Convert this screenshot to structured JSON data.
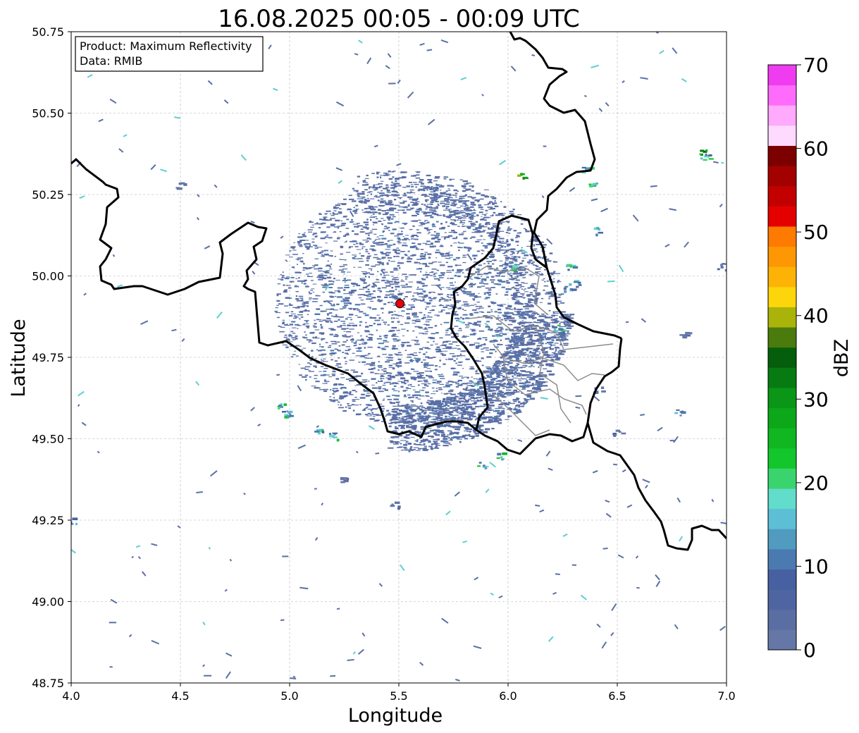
{
  "title": "16.08.2025 00:05 - 00:09 UTC",
  "info_box": {
    "product": "Product: Maximum Reflectivity",
    "data": "Data: RMIB"
  },
  "axes": {
    "xlabel": "Longitude",
    "ylabel": "Latitude",
    "xlim": [
      4.0,
      7.0
    ],
    "ylim": [
      48.75,
      50.75
    ],
    "xticks": [
      4.0,
      4.5,
      5.0,
      5.5,
      6.0,
      6.5,
      7.0
    ],
    "yticks": [
      48.75,
      49.0,
      49.25,
      49.5,
      49.75,
      50.0,
      50.25,
      50.5,
      50.75
    ],
    "xtick_labels": [
      "4.0",
      "4.5",
      "5.0",
      "5.5",
      "6.0",
      "6.5",
      "7.0"
    ],
    "ytick_labels": [
      "48.75",
      "49.00",
      "49.25",
      "49.50",
      "49.75",
      "50.00",
      "50.25",
      "50.50",
      "50.75"
    ],
    "grid": true
  },
  "radar_site": {
    "lon": 5.505,
    "lat": 49.915,
    "color": "#e8000b"
  },
  "colorbar": {
    "label": "dBZ",
    "min": 0,
    "max": 70,
    "ticks": [
      "0",
      "10",
      "20",
      "30",
      "40",
      "50",
      "60",
      "70"
    ],
    "colors": [
      "#6577a6",
      "#5a6ea3",
      "#4f65a2",
      "#4660a1",
      "#4a7ab0",
      "#509bbf",
      "#5cbfd6",
      "#62dccb",
      "#3ad46e",
      "#12c62c",
      "#10b720",
      "#0ca81a",
      "#0a9616",
      "#077b11",
      "#055e0c",
      "#4a7b0c",
      "#a9b30a",
      "#fcd60a",
      "#fdb305",
      "#fd9703",
      "#fe7a01",
      "#e50000",
      "#c20000",
      "#a30000",
      "#7c0000",
      "#ffdaff",
      "#ffaafc",
      "#ff6cfb",
      "#f03cf0"
    ]
  },
  "legend_colors": {
    "border": "#000000",
    "province_border": "#8c8c8c",
    "echo_weak": "#5a6fa6",
    "echo_green": "#3ac45a",
    "echo_cyan": "#5ccfd0",
    "echo_yellow": "#d8d60a"
  },
  "chart_data": {
    "type": "heatmap",
    "product": "Maximum Reflectivity",
    "units": "dBZ",
    "source": "RMIB",
    "x_range": [
      4.0,
      7.0
    ],
    "y_range": [
      48.75,
      50.75
    ],
    "value_range": [
      0,
      70
    ],
    "radar_location": {
      "lon": 5.505,
      "lat": 49.915
    },
    "echoes": [
      {
        "lon": 5.72,
        "lat": 49.62,
        "dbz": 8
      },
      {
        "lon": 5.8,
        "lat": 49.58,
        "dbz": 8
      },
      {
        "lon": 5.88,
        "lat": 49.65,
        "dbz": 6
      },
      {
        "lon": 6.0,
        "lat": 49.88,
        "dbz": 10
      },
      {
        "lon": 6.1,
        "lat": 49.92,
        "dbz": 8
      },
      {
        "lon": 6.3,
        "lat": 49.98,
        "dbz": 18
      },
      {
        "lon": 6.27,
        "lat": 49.96,
        "dbz": 16
      },
      {
        "lon": 6.06,
        "lat": 50.31,
        "dbz": 40
      },
      {
        "lon": 6.89,
        "lat": 50.38,
        "dbz": 38
      },
      {
        "lon": 6.36,
        "lat": 50.33,
        "dbz": 20
      },
      {
        "lon": 6.39,
        "lat": 50.29,
        "dbz": 30
      },
      {
        "lon": 5.95,
        "lat": 49.45,
        "dbz": 26
      },
      {
        "lon": 5.88,
        "lat": 49.42,
        "dbz": 22
      },
      {
        "lon": 5.13,
        "lat": 49.52,
        "dbz": 24
      },
      {
        "lon": 5.2,
        "lat": 49.51,
        "dbz": 22
      },
      {
        "lon": 4.95,
        "lat": 49.6,
        "dbz": 26
      },
      {
        "lon": 4.98,
        "lat": 49.58,
        "dbz": 22
      },
      {
        "lon": 6.97,
        "lat": 50.03,
        "dbz": 6
      },
      {
        "lon": 6.28,
        "lat": 50.03,
        "dbz": 24
      },
      {
        "lon": 6.23,
        "lat": 49.84,
        "dbz": 24
      },
      {
        "lon": 6.4,
        "lat": 50.14,
        "dbz": 22
      },
      {
        "lon": 6.0,
        "lat": 50.03,
        "dbz": 24
      },
      {
        "lon": 4.0,
        "lat": 49.25,
        "dbz": 18
      },
      {
        "lon": 5.48,
        "lat": 49.3,
        "dbz": 6
      },
      {
        "lon": 5.25,
        "lat": 49.38,
        "dbz": 6
      },
      {
        "lon": 4.5,
        "lat": 50.28,
        "dbz": 6
      },
      {
        "lon": 6.8,
        "lat": 49.82,
        "dbz": 6
      },
      {
        "lon": 6.5,
        "lat": 49.52,
        "dbz": 8
      },
      {
        "lon": 6.78,
        "lat": 49.58,
        "dbz": 16
      },
      {
        "lon": 6.41,
        "lat": 49.65,
        "dbz": 6
      },
      {
        "lon": 6.9,
        "lat": 50.37,
        "dbz": 24
      }
    ]
  }
}
